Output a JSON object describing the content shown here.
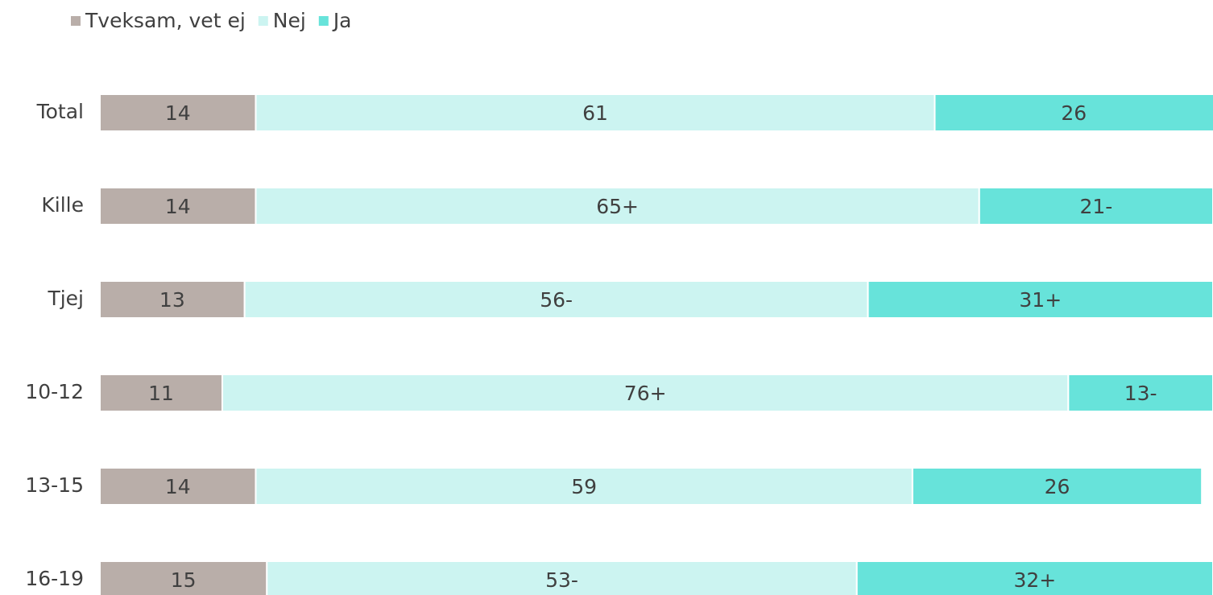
{
  "chart_data": {
    "type": "stacked-bar",
    "orientation": "horizontal",
    "categories": [
      "Total",
      "Kille",
      "Tjej",
      "10-12",
      "13-15",
      "16-19"
    ],
    "series": [
      {
        "name": "Tveksam, vet ej",
        "color": "#b9aea9",
        "values": [
          14,
          14,
          13,
          11,
          14,
          15
        ],
        "value_labels": [
          "14",
          "14",
          "13",
          "11",
          "14",
          "15"
        ]
      },
      {
        "name": "Nej",
        "color": "#ccf4f1",
        "values": [
          61,
          65,
          56,
          76,
          59,
          53
        ],
        "value_labels": [
          "61",
          "65+",
          "56-",
          "76+",
          "59",
          "53-"
        ]
      },
      {
        "name": "Ja",
        "color": "#67e3da",
        "values": [
          26,
          21,
          31,
          13,
          26,
          32
        ],
        "value_labels": [
          "26",
          "21-",
          "31+",
          "13-",
          "26",
          "32+"
        ]
      }
    ],
    "xlim": [
      0,
      100
    ],
    "legend": "top-left"
  }
}
